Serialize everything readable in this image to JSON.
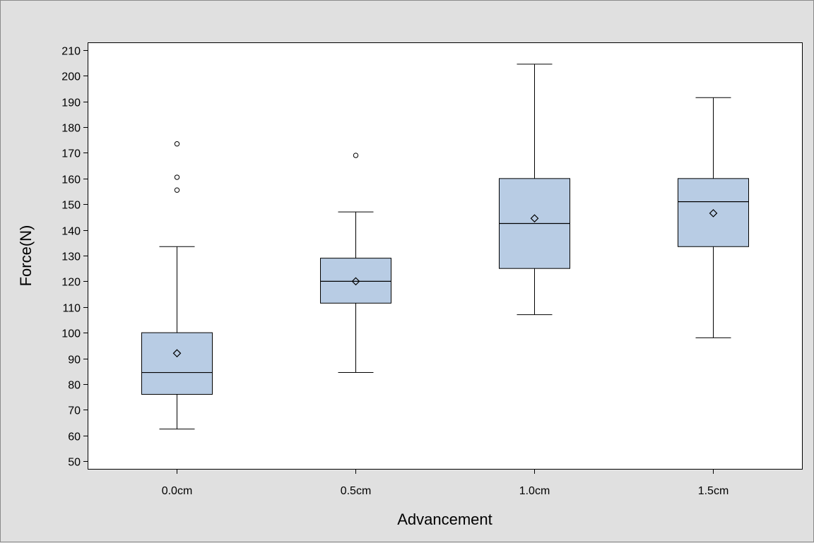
{
  "chart_data": {
    "type": "box",
    "title": "",
    "xlabel": "Advancement",
    "ylabel": "Force(N)",
    "categories": [
      "0.0cm",
      "0.5cm",
      "1.0cm",
      "1.5cm"
    ],
    "ylim": [
      47,
      213
    ],
    "yticks": [
      50,
      60,
      70,
      80,
      90,
      100,
      110,
      120,
      130,
      140,
      150,
      160,
      170,
      180,
      190,
      200,
      210
    ],
    "boxes": [
      {
        "category": "0.0cm",
        "whisker_low": 62.5,
        "q1": 76,
        "median": 84.5,
        "q3": 100,
        "whisker_high": 133.5,
        "mean": 92,
        "outliers": [
          155.5,
          160.5,
          173.5
        ]
      },
      {
        "category": "0.5cm",
        "whisker_low": 84.5,
        "q1": 111.5,
        "median": 120,
        "q3": 129,
        "whisker_high": 147,
        "mean": 120,
        "outliers": [
          169
        ]
      },
      {
        "category": "1.0cm",
        "whisker_low": 107,
        "q1": 125,
        "median": 142.5,
        "q3": 160,
        "whisker_high": 204.5,
        "mean": 144.5,
        "outliers": []
      },
      {
        "category": "1.5cm",
        "whisker_low": 98,
        "q1": 133.5,
        "median": 151,
        "q3": 160,
        "whisker_high": 191.5,
        "mean": 146.5,
        "outliers": []
      }
    ],
    "box_fill": "#b8cce4",
    "plot_background": "#ffffff",
    "page_background": "#e0e0e0",
    "grid": false,
    "legend": "none"
  }
}
